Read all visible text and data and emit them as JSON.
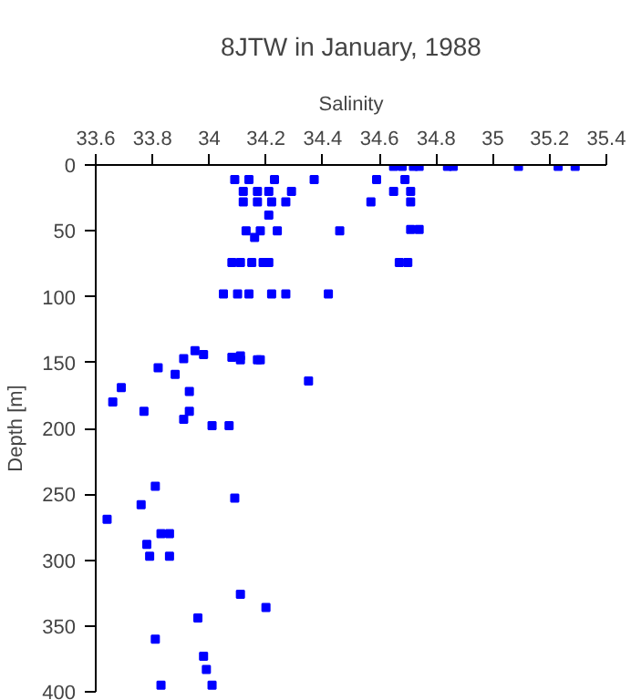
{
  "chart_data": {
    "type": "scatter",
    "title": "8JTW in January, 1988",
    "xlabel": "Salinity",
    "ylabel": "Depth [m]",
    "xlim": [
      33.6,
      35.4
    ],
    "xticks": [
      {
        "value": 33.6,
        "label": "33.6"
      },
      {
        "value": 33.8,
        "label": "33.8"
      },
      {
        "value": 34,
        "label": "34"
      },
      {
        "value": 34.2,
        "label": "34.2"
      },
      {
        "value": 34.4,
        "label": "34.4"
      },
      {
        "value": 34.6,
        "label": "34.6"
      },
      {
        "value": 34.8,
        "label": "34.8"
      },
      {
        "value": 35,
        "label": "35"
      },
      {
        "value": 35.2,
        "label": "35.2"
      },
      {
        "value": 35.4,
        "label": "35.4"
      }
    ],
    "ylim": [
      400,
      0
    ],
    "yticks": [
      0,
      50,
      100,
      150,
      200,
      250,
      300,
      350,
      400
    ],
    "grid": false,
    "marker": "square",
    "series": [
      {
        "color": "#0000ff",
        "x": [
          34.65,
          34.68,
          34.72,
          34.74,
          34.84,
          34.86,
          35.09,
          35.23,
          35.29,
          34.09,
          34.14,
          34.23,
          34.37,
          34.59,
          34.69,
          34.12,
          34.17,
          34.21,
          34.29,
          34.65,
          34.71,
          34.12,
          34.17,
          34.22,
          34.27,
          34.57,
          34.71,
          34.21,
          34.13,
          34.18,
          34.24,
          34.46,
          34.71,
          34.74,
          34.16,
          34.08,
          34.11,
          34.15,
          34.19,
          34.21,
          34.67,
          34.7,
          34.05,
          34.1,
          34.14,
          34.22,
          34.27,
          34.42,
          33.95,
          33.98,
          33.91,
          33.82,
          33.88,
          33.69,
          33.66,
          33.77,
          33.93,
          33.93,
          33.91,
          34.01,
          34.07,
          34.08,
          34.11,
          34.11,
          34.17,
          34.18,
          34.35,
          33.81,
          33.76,
          33.64,
          34.09,
          33.78,
          33.83,
          33.86,
          33.79,
          33.86,
          34.11,
          34.2,
          33.96,
          33.81,
          33.98,
          33.99,
          33.83,
          34.01
        ],
        "values": [
          1,
          1,
          1,
          1,
          1,
          1,
          1,
          1,
          1,
          11,
          11,
          11,
          11,
          11,
          11,
          20,
          20,
          20,
          20,
          20,
          20,
          28,
          28,
          28,
          28,
          28,
          28,
          38,
          50,
          50,
          50,
          50,
          49,
          49,
          55,
          74,
          74,
          74,
          74,
          74,
          74,
          74,
          98,
          98,
          98,
          98,
          98,
          98,
          141,
          144,
          147,
          154,
          159,
          169,
          180,
          187,
          172,
          187,
          193,
          198,
          198,
          146,
          145,
          148,
          148,
          148,
          164,
          244,
          258,
          269,
          253,
          288,
          280,
          280,
          297,
          297,
          326,
          336,
          344,
          360,
          373,
          383,
          395,
          395
        ]
      }
    ]
  }
}
